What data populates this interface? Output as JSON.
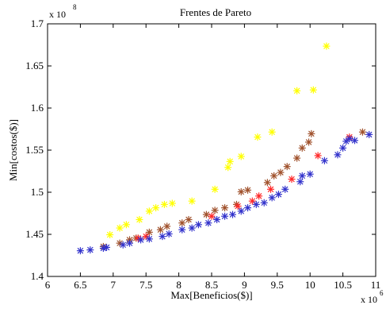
{
  "chart_data": {
    "type": "scatter",
    "title": "Frentes de Pareto",
    "xlabel": "Max[Beneficios($)]",
    "ylabel": "Min[costos($)]",
    "x_multiplier": {
      "base": "x 10",
      "exponent": "6"
    },
    "y_multiplier": {
      "base": "x 10",
      "exponent": "8"
    },
    "xlim": [
      6,
      11
    ],
    "ylim": [
      1.4,
      1.7
    ],
    "xticks": [
      "6",
      "6.5",
      "7",
      "7.5",
      "8",
      "8.5",
      "9",
      "9.5",
      "10",
      "10.5",
      "11"
    ],
    "yticks": [
      "1.4",
      "1.45",
      "1.5",
      "1.55",
      "1.6",
      "1.65",
      "1.7"
    ],
    "grid": false,
    "marker": "asterisk",
    "series": [
      {
        "color": "#ffff00",
        "points": [
          [
            6.95,
            1.4495
          ],
          [
            7.1,
            1.4575
          ],
          [
            7.2,
            1.4615
          ],
          [
            7.4,
            1.4675
          ],
          [
            7.55,
            1.4775
          ],
          [
            7.65,
            1.4815
          ],
          [
            7.78,
            1.4855
          ],
          [
            7.9,
            1.4868
          ],
          [
            8.2,
            1.4895
          ],
          [
            8.55,
            1.5035
          ],
          [
            8.75,
            1.5295
          ],
          [
            8.78,
            1.5365
          ],
          [
            8.95,
            1.5425
          ],
          [
            9.2,
            1.5655
          ],
          [
            9.42,
            1.5715
          ],
          [
            9.8,
            1.6205
          ],
          [
            10.05,
            1.6215
          ],
          [
            10.25,
            1.6735
          ]
        ]
      },
      {
        "color": "#a0522d",
        "points": [
          [
            6.85,
            1.4355
          ],
          [
            7.1,
            1.4395
          ],
          [
            7.25,
            1.4435
          ],
          [
            7.35,
            1.4455
          ],
          [
            7.55,
            1.4525
          ],
          [
            7.72,
            1.4555
          ],
          [
            7.82,
            1.4595
          ],
          [
            8.05,
            1.4635
          ],
          [
            8.15,
            1.4675
          ],
          [
            8.42,
            1.4735
          ],
          [
            8.55,
            1.4785
          ],
          [
            8.7,
            1.4815
          ],
          [
            8.88,
            1.4855
          ],
          [
            8.95,
            1.5005
          ],
          [
            9.05,
            1.5025
          ],
          [
            9.35,
            1.5115
          ],
          [
            9.45,
            1.5195
          ],
          [
            9.55,
            1.5235
          ],
          [
            9.65,
            1.5305
          ],
          [
            9.8,
            1.5405
          ],
          [
            9.88,
            1.5525
          ],
          [
            9.98,
            1.5595
          ],
          [
            10.02,
            1.5695
          ],
          [
            10.8,
            1.5715
          ]
        ]
      },
      {
        "color": "#ff2a2a",
        "points": [
          [
            7.38,
            1.4455
          ],
          [
            7.5,
            1.4475
          ],
          [
            8.5,
            1.4715
          ],
          [
            8.9,
            1.4835
          ],
          [
            9.12,
            1.4895
          ],
          [
            9.22,
            1.4955
          ],
          [
            9.4,
            1.5035
          ],
          [
            9.72,
            1.5155
          ],
          [
            10.12,
            1.5435
          ],
          [
            10.6,
            1.5655
          ]
        ]
      },
      {
        "color": "#3333cc",
        "points": [
          [
            6.5,
            1.4305
          ],
          [
            6.65,
            1.4315
          ],
          [
            6.85,
            1.4335
          ],
          [
            6.9,
            1.4345
          ],
          [
            7.15,
            1.4375
          ],
          [
            7.25,
            1.4395
          ],
          [
            7.42,
            1.4435
          ],
          [
            7.55,
            1.4445
          ],
          [
            7.75,
            1.4475
          ],
          [
            7.85,
            1.4505
          ],
          [
            8.05,
            1.4555
          ],
          [
            8.2,
            1.4575
          ],
          [
            8.3,
            1.4615
          ],
          [
            8.45,
            1.4635
          ],
          [
            8.58,
            1.4675
          ],
          [
            8.7,
            1.4715
          ],
          [
            8.82,
            1.4735
          ],
          [
            8.95,
            1.4775
          ],
          [
            9.05,
            1.4815
          ],
          [
            9.18,
            1.4855
          ],
          [
            9.3,
            1.4875
          ],
          [
            9.42,
            1.4935
          ],
          [
            9.52,
            1.4975
          ],
          [
            9.62,
            1.5035
          ],
          [
            9.85,
            1.5125
          ],
          [
            9.88,
            1.5195
          ],
          [
            10.0,
            1.5215
          ],
          [
            10.22,
            1.5375
          ],
          [
            10.42,
            1.5445
          ],
          [
            10.5,
            1.5525
          ],
          [
            10.55,
            1.5605
          ],
          [
            10.6,
            1.5635
          ],
          [
            10.68,
            1.5615
          ],
          [
            10.9,
            1.5685
          ]
        ]
      }
    ]
  }
}
